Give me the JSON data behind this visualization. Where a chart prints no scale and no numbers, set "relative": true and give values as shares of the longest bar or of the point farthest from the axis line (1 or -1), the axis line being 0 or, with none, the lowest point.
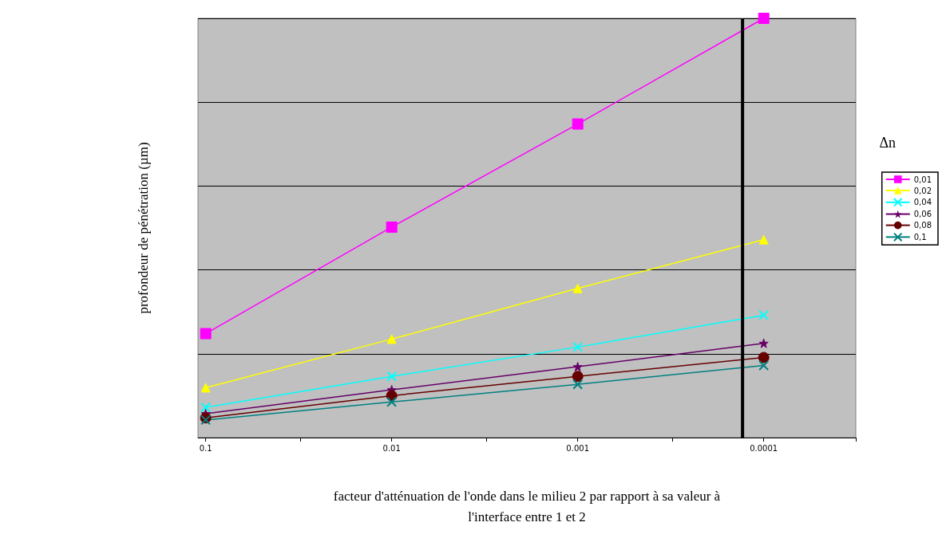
{
  "chart_data": {
    "type": "line",
    "xlabel": "facteur d'atténuation de l'onde dans le milieu 2 par rapport à sa valeur à\nl'interface entre 1 et 2",
    "ylabel": "profondeur de pénétration (µm)",
    "legend_title": "Δn",
    "legend": "right",
    "grid": "y",
    "relative": true,
    "log": "x",
    "x": [
      0.1,
      0.01,
      0.001,
      0.0001
    ],
    "xlim": [
      0.11,
      3.2e-05
    ],
    "xticks": [
      {
        "value": 0.1,
        "label": "0.1"
      },
      {
        "value": 0.031,
        "label": null
      },
      {
        "value": 0.01,
        "label": "0.01"
      },
      {
        "value": 0.0031,
        "label": null
      },
      {
        "value": 0.001,
        "label": "0.001"
      },
      {
        "value": 0.00031,
        "label": null
      },
      {
        "value": 0.0001,
        "label": "0.0001"
      },
      {
        "value": 3.2e-05,
        "label": null
      }
    ],
    "ref_lines": [
      {
        "axis": "x",
        "value": 0.00013,
        "color": "#000000"
      }
    ],
    "series": [
      {
        "name": "0,01",
        "color": "#ff00ff",
        "marker": "square",
        "values": [
          0.248,
          0.502,
          0.748,
          1
        ]
      },
      {
        "name": "0,02",
        "color": "#ffff00",
        "marker": "triangle",
        "values": [
          0.119,
          0.235,
          0.356,
          0.472
        ]
      },
      {
        "name": "0,04",
        "color": "#00ffff",
        "marker": "cross",
        "values": [
          0.072,
          0.146,
          0.216,
          0.292
        ]
      },
      {
        "name": "0,06",
        "color": "#660066",
        "marker": "star",
        "values": [
          0.057,
          0.114,
          0.169,
          0.225
        ]
      },
      {
        "name": "0,08",
        "color": "#660000",
        "marker": "circle",
        "values": [
          0.047,
          0.1,
          0.146,
          0.191
        ]
      },
      {
        "name": "0,1",
        "color": "#008080",
        "marker": "cross",
        "values": [
          0.042,
          0.085,
          0.127,
          0.172
        ]
      }
    ]
  }
}
